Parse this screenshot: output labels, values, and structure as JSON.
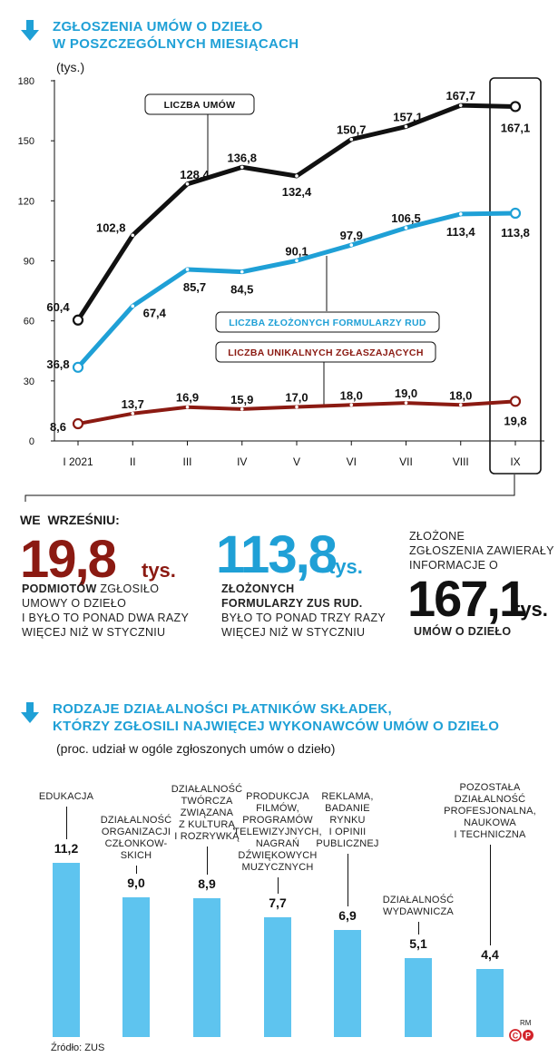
{
  "section1": {
    "title_line1": "ZGŁOSZENIA UMÓW O DZIEŁO",
    "title_line2": "W POSZCZEGÓLNYCH MIESIĄCACH",
    "unit": "(tys.)"
  },
  "chart_data": [
    {
      "type": "line",
      "x": [
        "I 2021",
        "II",
        "III",
        "IV",
        "V",
        "VI",
        "VII",
        "VIII",
        "IX"
      ],
      "ylim": [
        0,
        180
      ],
      "yticks": [
        0,
        30,
        60,
        90,
        120,
        150,
        180
      ],
      "ylabel": "(tys.)",
      "grid": false,
      "highlight_category": "IX",
      "series": [
        {
          "name": "LICZBA UMÓW",
          "color": "#111111",
          "values": [
            60.4,
            102.8,
            128.4,
            136.8,
            132.4,
            150.7,
            157.1,
            167.7,
            167.1
          ],
          "labels": [
            "60,4",
            "102,8",
            "128,4",
            "136,8",
            "132,4",
            "150,7",
            "157,1",
            "167,7",
            "167,1"
          ]
        },
        {
          "name": "LICZBA ZŁOŻONYCH FORMULARZY RUD",
          "color": "#1fa0d6",
          "values": [
            36.8,
            67.4,
            85.7,
            84.5,
            90.1,
            97.9,
            106.5,
            113.4,
            113.8
          ],
          "labels": [
            "36,8",
            "67,4",
            "85,7",
            "84,5",
            "90,1",
            "97,9",
            "106,5",
            "113,4",
            "113,8"
          ]
        },
        {
          "name": "LICZBA UNIKALNYCH ZGŁASZAJĄCYCH",
          "color": "#8b1a12",
          "values": [
            8.6,
            13.7,
            16.9,
            15.9,
            17.0,
            18.0,
            19.0,
            18.0,
            19.8
          ],
          "labels": [
            "8,6",
            "13,7",
            "16,9",
            "15,9",
            "17,0",
            "18,0",
            "19,0",
            "18,0",
            "19,8"
          ]
        }
      ]
    },
    {
      "type": "bar",
      "title": "RODZAJE DZIAŁALNOŚCI PŁATNIKÓW SKŁADEK, KTÓRZY ZGŁOSILI NAJWIĘCEJ WYKONAWCÓW UMÓW O DZIEŁO",
      "subtitle": "(proc. udział w ogóle zgłoszonych umów o dzieło)",
      "categories": [
        "EDUKACJA",
        "DZIAŁALNOŚĆ ORGANIZACJI CZŁONKOWSKICH",
        "DZIAŁALNOŚĆ TWÓRCZA ZWIĄZANA Z KULTURĄ I ROZRYWKĄ",
        "PRODUKCJA FILMÓW, PROGRAMÓW TELEWIZYJNYCH, NAGRAŃ DŹWIĘKOWYCH MUZYCZNYCH",
        "REKLAMA, BADANIE RYNKU I OPINII PUBLICZNEJ",
        "DZIAŁALNOŚĆ WYDAWNICZA",
        "POZOSTAŁA DZIAŁALNOŚĆ PROFESJONALNA, NAUKOWA I TECHNICZNA"
      ],
      "values": [
        11.2,
        9.0,
        8.9,
        7.7,
        6.9,
        5.1,
        4.4
      ],
      "labels": [
        "11,2",
        "9,0",
        "8,9",
        "7,7",
        "6,9",
        "5,1",
        "4,4"
      ],
      "color": "#5ec4ef"
    }
  ],
  "summary": {
    "heading": "WE WRZEŚNIU:",
    "stat1": {
      "value": "19,8",
      "unit": "tys.",
      "bold": "PODMIOTÓW",
      "rest1": " ZGŁOSIŁO",
      "rest2": "UMOWY O DZIEŁO",
      "rest3": "I BYŁO TO PONAD DWA RAZY",
      "rest4": "WIĘCEJ NIŻ  W STYCZNIU",
      "color": "#8b1a12"
    },
    "stat2": {
      "value": "113,8",
      "unit": "tys.",
      "bold1": "ZŁOŻONYCH",
      "bold2": "FORMULARZY ZUS RUD.",
      "rest1": "BYŁO TO PONAD TRZY RAZY",
      "rest2": "WIĘCEJ NIŻ W STYCZNIU",
      "color": "#1fa0d6"
    },
    "stat3": {
      "pre1": "ZŁOŻONE",
      "pre2": "ZGŁOSZENIA ZAWIERAŁY",
      "pre3": "INFORMACJE O",
      "value": "167,1",
      "unit": "tys.",
      "bold": "UMÓW O DZIEŁO",
      "color": "#111111"
    }
  },
  "section2": {
    "title_line1": "RODZAJE DZIAŁALNOŚCI PŁATNIKÓW SKŁADEK,",
    "title_line2": "KTÓRZY ZGŁOSILI NAJWIĘCEJ WYKONAWCÓW UMÓW O DZIEŁO",
    "subtitle": "(proc. udział w ogóle zgłoszonych umów o dzieło)",
    "cat_lines": [
      [
        "EDUKACJA"
      ],
      [
        "DZIAŁALNOŚĆ",
        "ORGANIZACJI",
        "CZŁONKOW-",
        "SKICH"
      ],
      [
        "DZIAŁALNOŚĆ",
        "TWÓRCZA",
        "ZWIĄZANA",
        "Z KULTURĄ",
        "I ROZRYWKĄ"
      ],
      [
        "PRODUKCJA",
        "FILMÓW,",
        "PROGRAMÓW",
        "TELEWIZYJNYCH,",
        "NAGRAŃ",
        "DŹWIĘKOWYCH",
        "MUZYCZNYCH"
      ],
      [
        "REKLAMA,",
        "BADANIE",
        "RYNKU",
        "I OPINII",
        "PUBLICZNEJ"
      ],
      [
        "DZIAŁALNOŚĆ",
        "WYDAWNICZA"
      ],
      [
        "POZOSTAŁA",
        "DZIAŁALNOŚĆ",
        "PROFESJONALNA,",
        "NAUKOWA",
        "I TECHNICZNA"
      ]
    ]
  },
  "footer": {
    "source": "Źródło: ZUS",
    "author": "RM",
    "logo_text": "CP"
  },
  "colors": {
    "blue": "#1fa0d6",
    "red": "#8b1a12",
    "black": "#111111",
    "bar": "#5ec4ef"
  }
}
